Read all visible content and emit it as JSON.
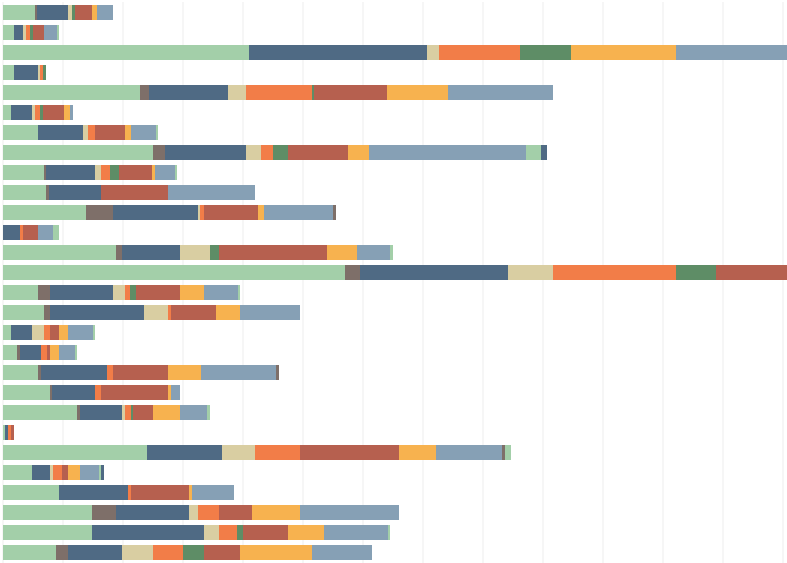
{
  "chart_data": {
    "type": "stacked-bar-horizontal",
    "categories": [
      null,
      null,
      null,
      null,
      null,
      null,
      null,
      null,
      null,
      null,
      null,
      null,
      null,
      null,
      null,
      null,
      null,
      null,
      null,
      null,
      null,
      null,
      null,
      null,
      null,
      null,
      null,
      null
    ],
    "xlim": [
      0,
      780
    ],
    "xticks": [
      0,
      60,
      120,
      180,
      240,
      300,
      360,
      420,
      480,
      540,
      600,
      660,
      720,
      780
    ],
    "grid": true,
    "series": [
      {
        "color": "#a3cfa9",
        "values": [
          32,
          11,
          246,
          11,
          137,
          8,
          35,
          150,
          41,
          43,
          83,
          0,
          113,
          342,
          35,
          41,
          8,
          14,
          35,
          47,
          74,
          2,
          144,
          29,
          56,
          89,
          89,
          53
        ]
      },
      {
        "color": "#7e6f69",
        "values": [
          2,
          0,
          0,
          0,
          9,
          0,
          0,
          12,
          2,
          3,
          27,
          0,
          6,
          15,
          12,
          6,
          0,
          3,
          3,
          2,
          3,
          0,
          0,
          0,
          0,
          24,
          0,
          12
        ]
      },
      {
        "color": "#4f6a84",
        "values": [
          31,
          9,
          178,
          24,
          79,
          21,
          45,
          81,
          49,
          52,
          85,
          17,
          58,
          148,
          63,
          94,
          21,
          21,
          66,
          43,
          42,
          3,
          75,
          18,
          69,
          73,
          112,
          54
        ]
      },
      {
        "color": "#d9cea2",
        "values": [
          4,
          3,
          12,
          2,
          18,
          3,
          5,
          15,
          6,
          0,
          2,
          0,
          30,
          45,
          12,
          24,
          12,
          0,
          0,
          0,
          3,
          0,
          33,
          3,
          0,
          9,
          15,
          31
        ]
      },
      {
        "color": "#f27d48",
        "values": [
          0,
          4,
          81,
          3,
          66,
          5,
          7,
          12,
          9,
          0,
          4,
          3,
          0,
          123,
          5,
          3,
          6,
          6,
          6,
          6,
          6,
          3,
          45,
          9,
          3,
          21,
          18,
          30
        ]
      },
      {
        "color": "#5e8d66",
        "values": [
          3,
          3,
          51,
          3,
          2,
          3,
          0,
          15,
          9,
          0,
          0,
          0,
          9,
          40,
          6,
          0,
          0,
          0,
          0,
          0,
          2,
          0,
          0,
          0,
          0,
          0,
          6,
          21
        ]
      },
      {
        "color": "#b6604f",
        "values": [
          17,
          11,
          0,
          0,
          73,
          21,
          30,
          60,
          33,
          67,
          54,
          15,
          108,
          71,
          44,
          45,
          9,
          3,
          55,
          67,
          20,
          3,
          99,
          6,
          58,
          33,
          45,
          36
        ]
      },
      {
        "color": "#f7b24f",
        "values": [
          5,
          0,
          105,
          0,
          61,
          6,
          6,
          21,
          3,
          0,
          6,
          0,
          30,
          0,
          24,
          24,
          9,
          9,
          33,
          3,
          27,
          0,
          37,
          12,
          3,
          48,
          36,
          72
        ]
      },
      {
        "color": "#86a0b5",
        "values": [
          16,
          13,
          111,
          0,
          105,
          3,
          25,
          157,
          20,
          87,
          69,
          15,
          33,
          0,
          34,
          60,
          25,
          16,
          75,
          9,
          27,
          0,
          66,
          19,
          42,
          99,
          64,
          60
        ]
      },
      {
        "color": "#7e6f69",
        "values": [
          0,
          0,
          0,
          0,
          0,
          0,
          0,
          0,
          0,
          0,
          3,
          0,
          0,
          0,
          0,
          0,
          0,
          0,
          3,
          0,
          0,
          0,
          3,
          0,
          0,
          0,
          0,
          0
        ]
      },
      {
        "color": "#a3cfa9",
        "values": [
          0,
          2,
          0,
          0,
          0,
          0,
          2,
          15,
          2,
          0,
          0,
          6,
          3,
          0,
          2,
          0,
          2,
          2,
          0,
          0,
          3,
          0,
          6,
          2,
          0,
          0,
          2,
          0
        ]
      },
      {
        "color": "#4f6a84",
        "values": [
          0,
          0,
          0,
          0,
          0,
          0,
          0,
          6,
          0,
          0,
          0,
          0,
          0,
          0,
          0,
          0,
          0,
          0,
          0,
          0,
          0,
          0,
          0,
          3,
          0,
          0,
          0,
          0
        ]
      }
    ]
  }
}
